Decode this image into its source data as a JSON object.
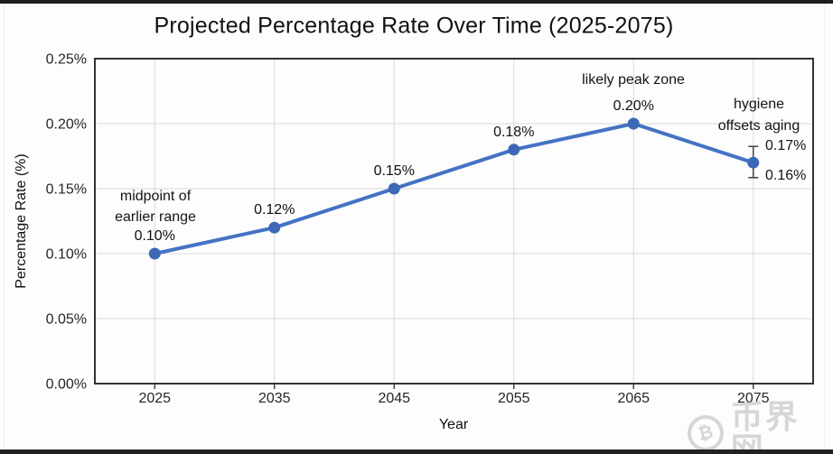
{
  "chart_data": {
    "type": "line",
    "title": "Projected Percentage Rate Over Time (2025-2075)",
    "xlabel": "Year",
    "ylabel": "Percentage Rate (%)",
    "x": [
      2025,
      2035,
      2045,
      2055,
      2065,
      2075
    ],
    "values": [
      0.1,
      0.12,
      0.15,
      0.18,
      0.2,
      0.17
    ],
    "point_labels": [
      "0.10%",
      "0.12%",
      "0.15%",
      "0.18%",
      "0.20%",
      ""
    ],
    "ylim": [
      0,
      0.25
    ],
    "yticks": [
      {
        "value": 0.0,
        "label": "0.00%"
      },
      {
        "value": 0.05,
        "label": "0.05%"
      },
      {
        "value": 0.1,
        "label": "0.10%"
      },
      {
        "value": 0.15,
        "label": "0.15%"
      },
      {
        "value": 0.2,
        "label": "0.20%"
      },
      {
        "value": 0.25,
        "label": "0.25%"
      }
    ],
    "grid": true,
    "legend": false,
    "line_color": "#4472C4",
    "marker_color": "#3D68B5",
    "annotations": [
      {
        "target_x": 2025,
        "lines": [
          "midpoint of",
          "earlier range"
        ]
      },
      {
        "target_x": 2065,
        "lines": [
          "likely peak zone"
        ]
      },
      {
        "target_x": 2075,
        "lines": [
          "hygiene",
          "offsets aging"
        ]
      }
    ],
    "error_bar": {
      "x": 2075,
      "upper": 0.1825,
      "lower": 0.1585,
      "upper_label": "0.17%",
      "lower_label": "0.16%"
    }
  },
  "watermark": {
    "symbol": "₿",
    "text": "币界网"
  }
}
